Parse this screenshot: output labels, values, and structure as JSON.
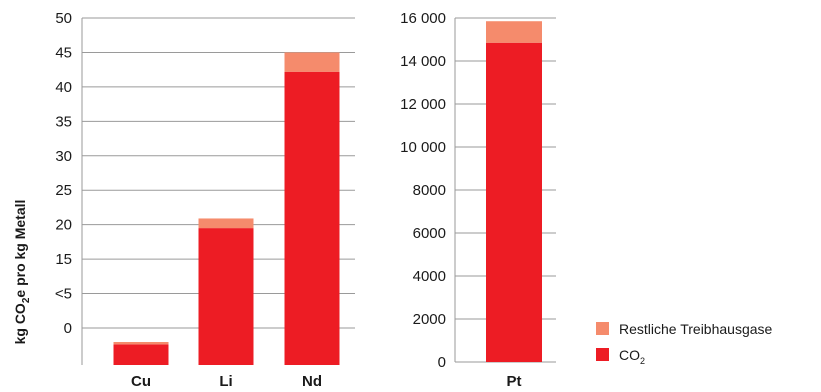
{
  "chart_data": [
    {
      "type": "bar",
      "stacked": true,
      "categories": [
        "Cu",
        "Li",
        "Nd"
      ],
      "y_tick_labels": [
        "50",
        "45",
        "40",
        "35",
        "30",
        "25",
        "20",
        "15",
        "<5",
        "0"
      ],
      "ylabel": "kg CO2e pro kg Metall",
      "series": [
        {
          "name": "CO2",
          "values": [
            3.5,
            19.5,
            42.2
          ],
          "color": "#ed1c24"
        },
        {
          "name": "Restliche Treibhausgase",
          "values": [
            0.4,
            1.4,
            2.8
          ],
          "color": "#f58b6c"
        }
      ],
      "grid": true
    },
    {
      "type": "bar",
      "stacked": true,
      "categories": [
        "Pt"
      ],
      "y_tick_labels": [
        "16 000",
        "14 000",
        "12 000",
        "10 000",
        "8000",
        "6000",
        "4000",
        "2000",
        "0"
      ],
      "ylim": [
        0,
        16000
      ],
      "series": [
        {
          "name": "CO2",
          "values": [
            14850
          ],
          "color": "#ed1c24"
        },
        {
          "name": "Restliche Treibhausgase",
          "values": [
            1000
          ],
          "color": "#f58b6c"
        }
      ],
      "grid": true
    }
  ],
  "legend": [
    {
      "label": "Restliche Treibhausgase",
      "color": "#f58b6c"
    },
    {
      "label": "CO",
      "sub": "2",
      "color": "#ed1c24"
    }
  ],
  "ylabel_parts": {
    "pre": "kg CO",
    "sub": "2",
    "post": "e pro kg Metall"
  }
}
